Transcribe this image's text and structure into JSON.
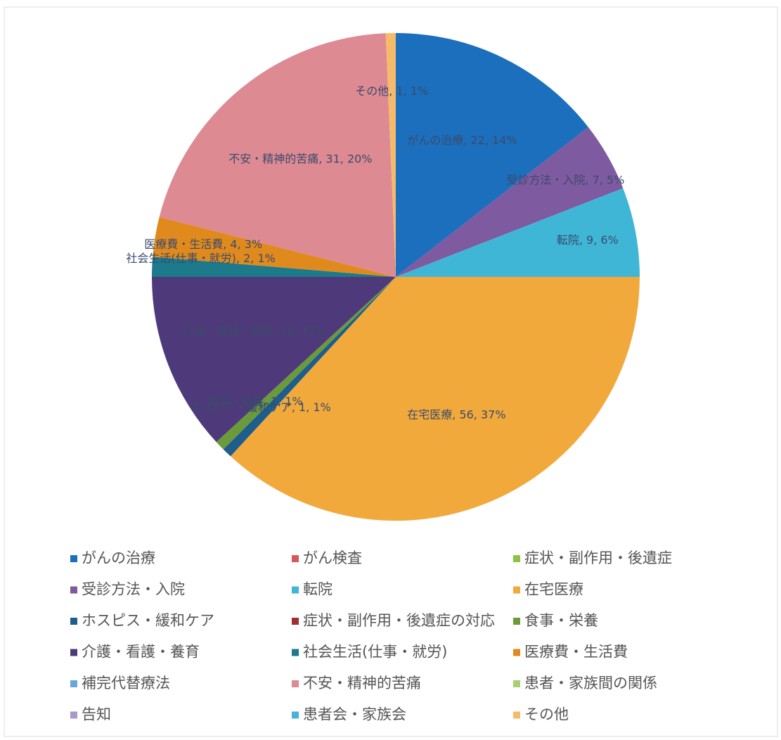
{
  "chart_data": {
    "type": "pie",
    "categories": [
      "がんの治療",
      "がん検査",
      "症状・副作用・後遺症",
      "受診方法・入院",
      "転院",
      "在宅医療",
      "ホスピス・緩和ケア",
      "症状・副作用・後遺症の対応",
      "食事・栄養",
      "介護・看護・養育",
      "社会生活(仕事・就労)",
      "医療費・生活費",
      "補完代替療法",
      "不安・精神的苦痛",
      "患者・家族間の関係",
      "告知",
      "患者会・家族会",
      "その他"
    ],
    "values": [
      22,
      0,
      0,
      7,
      9,
      56,
      1,
      0,
      1,
      18,
      2,
      4,
      0,
      31,
      0,
      0,
      0,
      1
    ],
    "value_labels": [
      "がんの治療, 22, 14%",
      null,
      null,
      "受診方法・入院, 7, 5%",
      "転院, 9, 6%",
      "在宅医療, 56, 37%",
      "ホスピス・緩和ケア, 1, 1%",
      null,
      "食事・栄養, 1, 1%",
      "介護・看護・養育, 18, 12%",
      "社会生活(仕事・就労), 2, 1%",
      "医療費・生活費, 4, 3%",
      null,
      "不安・精神的苦痛, 31, 20%",
      null,
      null,
      null,
      "その他, 1, 1%"
    ],
    "colors": [
      "#1b6fbd",
      "#d25a5a",
      "#8cc43f",
      "#7e5aa0",
      "#3fb6d6",
      "#f2a93b",
      "#1f5e8c",
      "#a03030",
      "#6a9a3a",
      "#4e3a7a",
      "#1c7a8a",
      "#e08a1e",
      "#6aa7d8",
      "#dd8a93",
      "#a8d070",
      "#a898cc",
      "#4ab0de",
      "#f5bb6a"
    ],
    "legend": "bottom"
  }
}
